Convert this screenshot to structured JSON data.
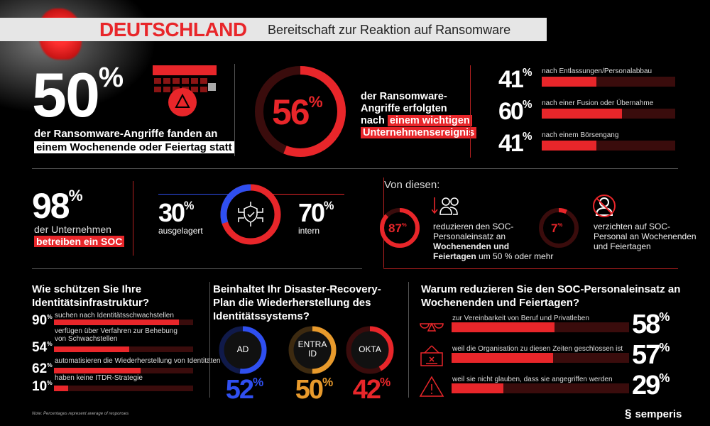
{
  "header": {
    "title": "DEUTSCHLAND",
    "subtitle": "Bereitschaft zur Reaktion auf Ransomware"
  },
  "weekend": {
    "value": "50",
    "unit": "%",
    "line1": "der Ransomware-Angriffe fanden an",
    "line2": "einem Wochenende oder Feiertag statt"
  },
  "event": {
    "value": "56",
    "unit": "%",
    "percent": 56,
    "lines": [
      "der Ransomware-",
      "Angriffe erfolgten",
      "nach"
    ],
    "hl1": "einem wichtigen",
    "hl2": "Unternehmensereignis"
  },
  "event_bars": [
    {
      "value": "41",
      "unit": "%",
      "percent": 41,
      "label": "nach Entlassungen/Personalabbau"
    },
    {
      "value": "60",
      "unit": "%",
      "percent": 60,
      "label": "nach einer Fusion oder Übernahme"
    },
    {
      "value": "41",
      "unit": "%",
      "percent": 41,
      "label": "nach einem Börsengang"
    }
  ],
  "soc": {
    "value": "98",
    "unit": "%",
    "line1": "der Unternehmen",
    "hl": "betreiben ein SOC",
    "outsourced": {
      "value": "30",
      "unit": "%",
      "label": "ausgelagert",
      "percent": 30
    },
    "internal": {
      "value": "70",
      "unit": "%",
      "label": "intern",
      "percent": 70
    }
  },
  "of_these": {
    "heading": "Von diesen:",
    "reduce": {
      "value": "87",
      "unit": "%",
      "percent": 87,
      "t1": "reduzieren den SOC-",
      "t2": "Personaleinsatz an",
      "b1": "Wochenenden und",
      "b2": "Feiertagen",
      "t3": " um 50 % oder mehr"
    },
    "none": {
      "value": "7",
      "unit": "%",
      "percent": 7,
      "t1": "verzichten auf SOC-",
      "t2": "Personal an Wochenenden",
      "t3": "und Feiertagen"
    }
  },
  "identity": {
    "title1": "Wie schützen Sie Ihre",
    "title2": "Identitätsinfrastruktur?",
    "rows": [
      {
        "value": "90",
        "unit": "%",
        "percent": 90,
        "label": "suchen nach Identitätsschwachstellen",
        "label2": ""
      },
      {
        "value": "54",
        "unit": "%",
        "percent": 54,
        "label": "verfügen über Verfahren zur Behebung",
        "label2": "von Schwachstellen"
      },
      {
        "value": "62",
        "unit": "%",
        "percent": 62,
        "label": "automatisieren die Wiederherstellung von Identitäten",
        "label2": ""
      },
      {
        "value": "10",
        "unit": "%",
        "percent": 10,
        "label": "haben keine ITDR-Strategie",
        "label2": ""
      }
    ]
  },
  "dr": {
    "title1": "Beinhaltet Ihr Disaster-Recovery-",
    "title2": "Plan die Wiederherstellung des",
    "title3": "Identitätssystems?",
    "items": [
      {
        "name": "AD",
        "name2": "",
        "value": "52",
        "unit": "%",
        "percent": 52,
        "color": "#2f4ff0",
        "track": "#101a4a"
      },
      {
        "name": "ENTRA",
        "name2": "ID",
        "value": "50",
        "unit": "%",
        "percent": 50,
        "color": "#e89a2c",
        "track": "#3d2a10"
      },
      {
        "name": "OKTA",
        "name2": "",
        "value": "42",
        "unit": "%",
        "percent": 42,
        "color": "#e8262a",
        "track": "#3a0c0c"
      }
    ]
  },
  "why": {
    "title1": "Warum reduzieren Sie den SOC-Personaleinsatz an",
    "title2": "Wochenenden und Feiertagen?",
    "rows": [
      {
        "icon": "balance-icon",
        "label": "zur Vereinbarkeit von Beruf und Privatleben",
        "value": "58",
        "unit": "%",
        "percent": 58
      },
      {
        "icon": "closed-sign-icon",
        "label": "weil die Organisation zu diesen Zeiten geschlossen ist",
        "value": "57",
        "unit": "%",
        "percent": 57
      },
      {
        "icon": "warning-icon",
        "label": "weil sie nicht glauben, dass sie angegriffen werden",
        "value": "29",
        "unit": "%",
        "percent": 29
      }
    ]
  },
  "note": "Note: Percentages represent average of responses",
  "logo": "semperis",
  "colors": {
    "accent": "#e8262a",
    "track": "#3a0c0c",
    "blue": "#2f4ff0",
    "orange": "#e89a2c"
  }
}
